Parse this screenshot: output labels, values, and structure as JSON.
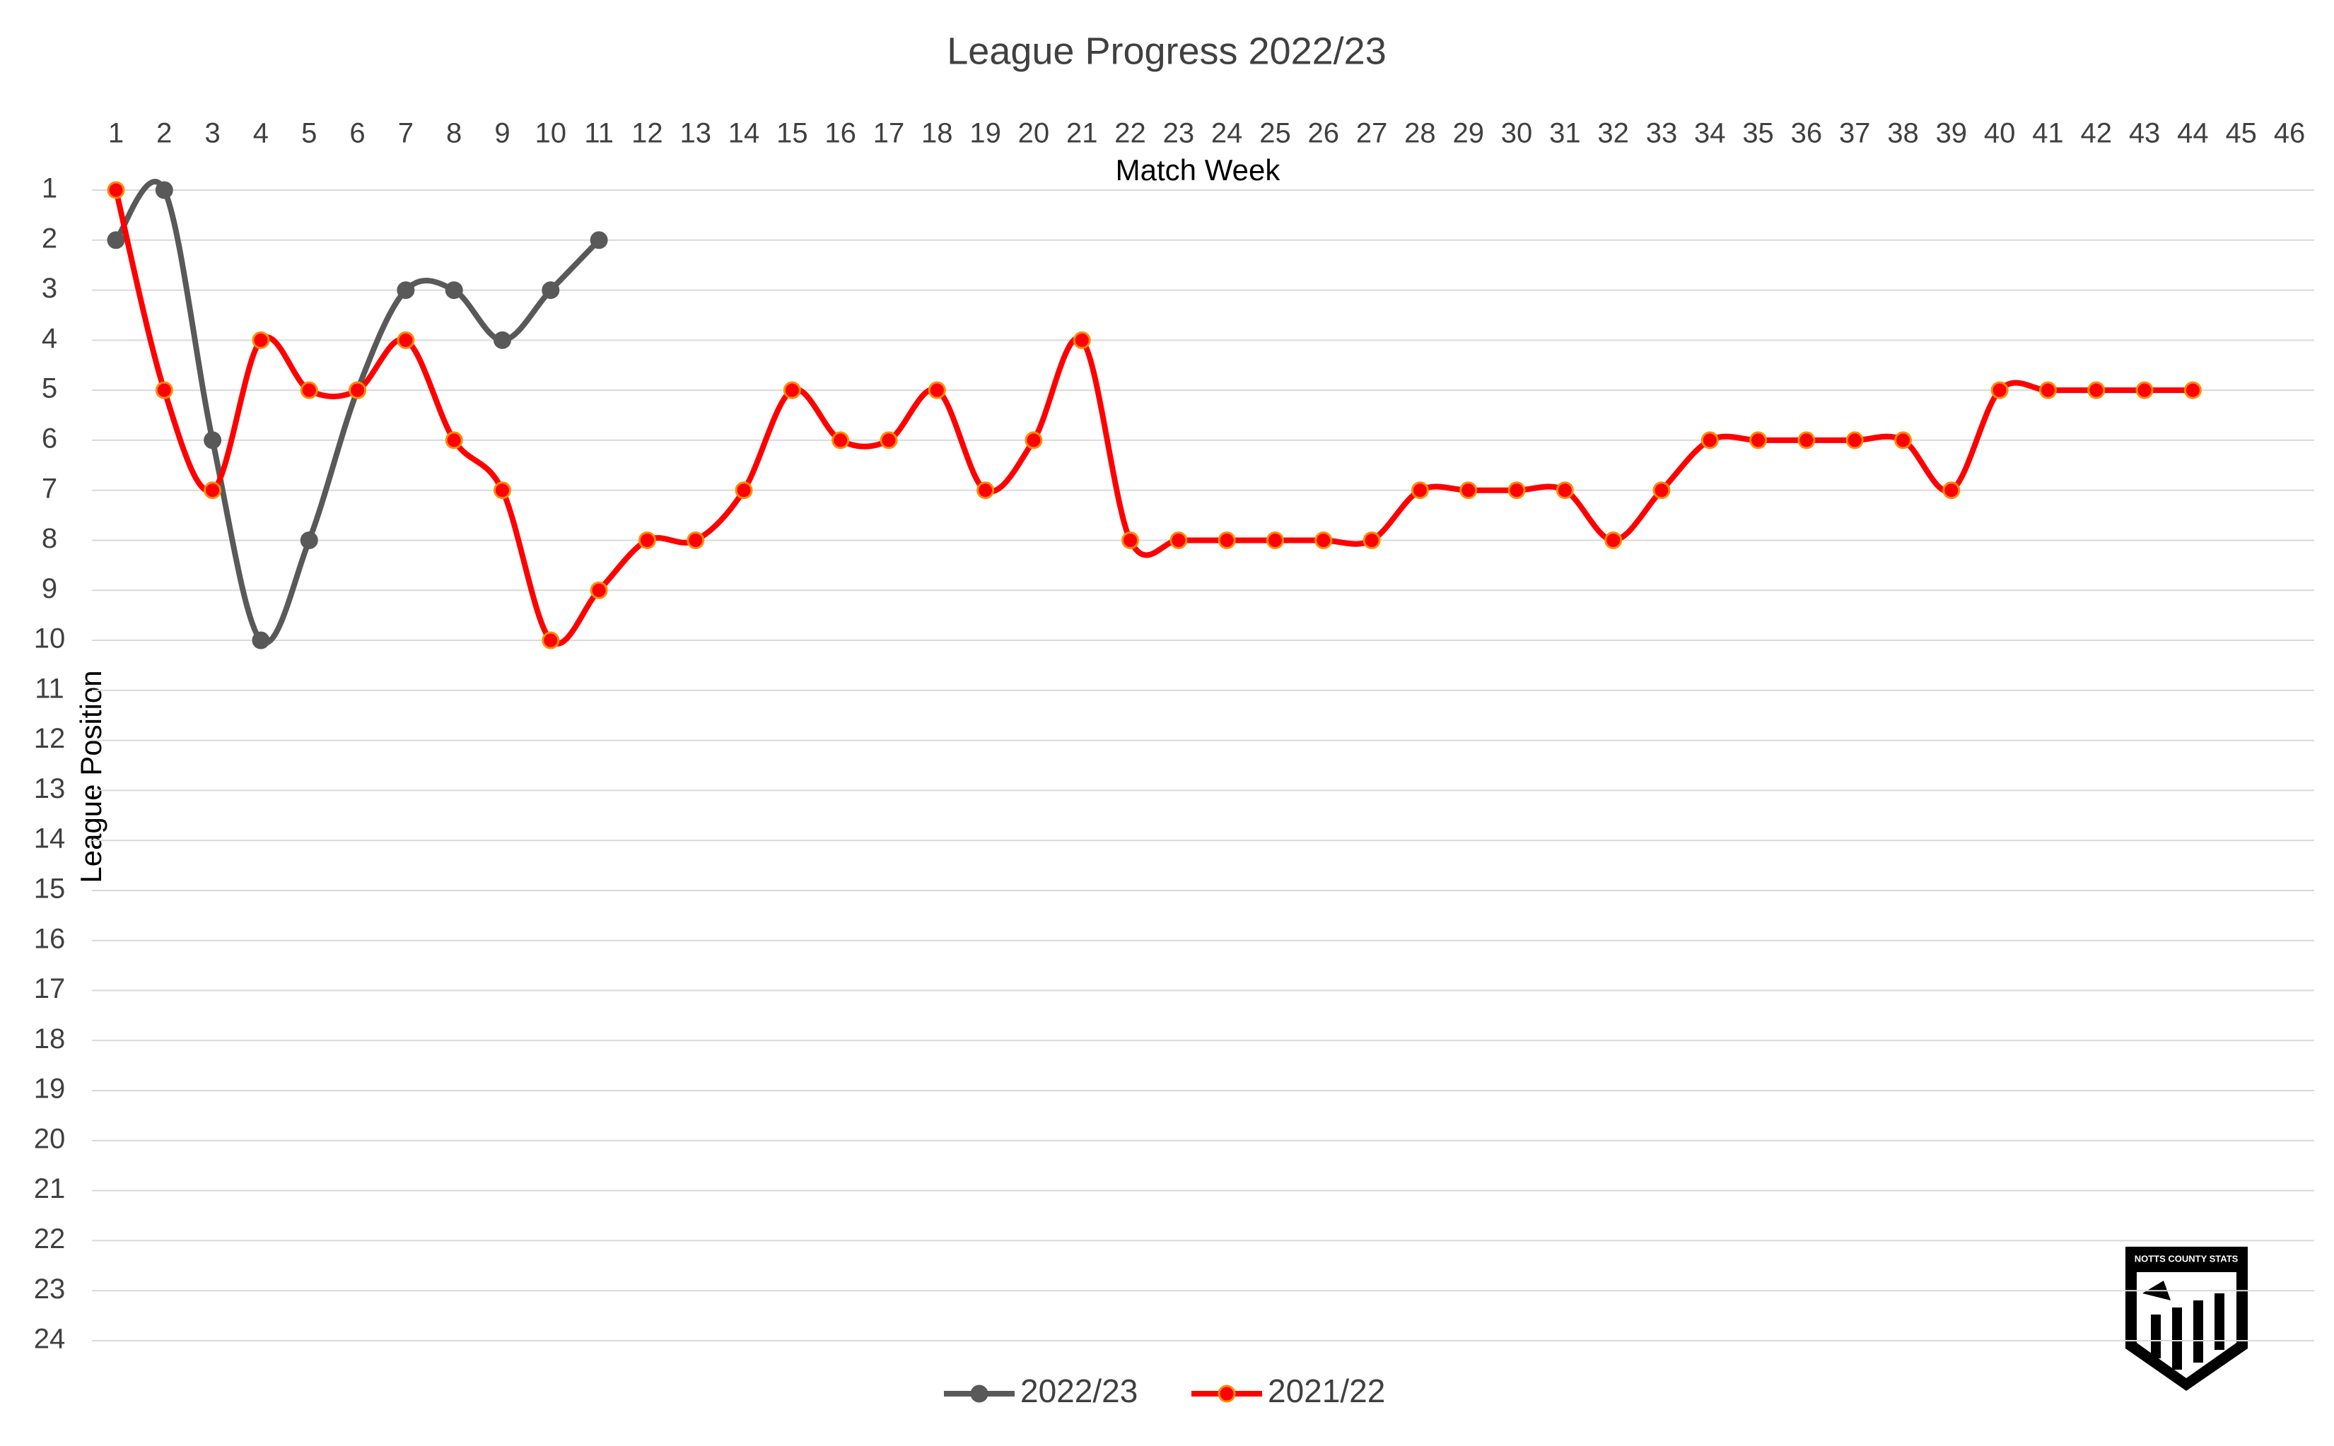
{
  "chart_data": {
    "type": "line",
    "title": "League Progress 2022/23",
    "x_label": "Match Week",
    "y_label": "League Position",
    "categories": [
      1,
      2,
      3,
      4,
      5,
      6,
      7,
      8,
      9,
      10,
      11,
      12,
      13,
      14,
      15,
      16,
      17,
      18,
      19,
      20,
      21,
      22,
      23,
      24,
      25,
      26,
      27,
      28,
      29,
      30,
      31,
      32,
      33,
      34,
      35,
      36,
      37,
      38,
      39,
      40,
      41,
      42,
      43,
      44,
      45,
      46
    ],
    "series": [
      {
        "name": "2022/23",
        "color": "#595959",
        "values": [
          2,
          1,
          6,
          10,
          8,
          5,
          3,
          3,
          4,
          3,
          2,
          null,
          null,
          null,
          null,
          null,
          null,
          null,
          null,
          null,
          null,
          null,
          null,
          null,
          null,
          null,
          null,
          null,
          null,
          null,
          null,
          null,
          null,
          null,
          null,
          null,
          null,
          null,
          null,
          null,
          null,
          null,
          null,
          null,
          null,
          null
        ]
      },
      {
        "name": "2021/22",
        "color": "#ff0000",
        "values": [
          1,
          5,
          7,
          4,
          5,
          5,
          4,
          6,
          7,
          10,
          9,
          8,
          8,
          7,
          5,
          6,
          6,
          5,
          7,
          6,
          4,
          8,
          8,
          8,
          8,
          8,
          8,
          7,
          7,
          7,
          7,
          8,
          7,
          6,
          6,
          6,
          6,
          6,
          7,
          5,
          5,
          5,
          5,
          5,
          null,
          null
        ]
      }
    ],
    "ylim": [
      1,
      24
    ],
    "y_inverted": true,
    "x_axis_position": "top",
    "yticks": [
      1,
      2,
      3,
      4,
      5,
      6,
      7,
      8,
      9,
      10,
      11,
      12,
      13,
      14,
      15,
      16,
      17,
      18,
      19,
      20,
      21,
      22,
      23,
      24
    ],
    "grid": true,
    "smooth": true,
    "legend": "bottom",
    "logo_text": "NOTTS COUNTY STATS"
  }
}
